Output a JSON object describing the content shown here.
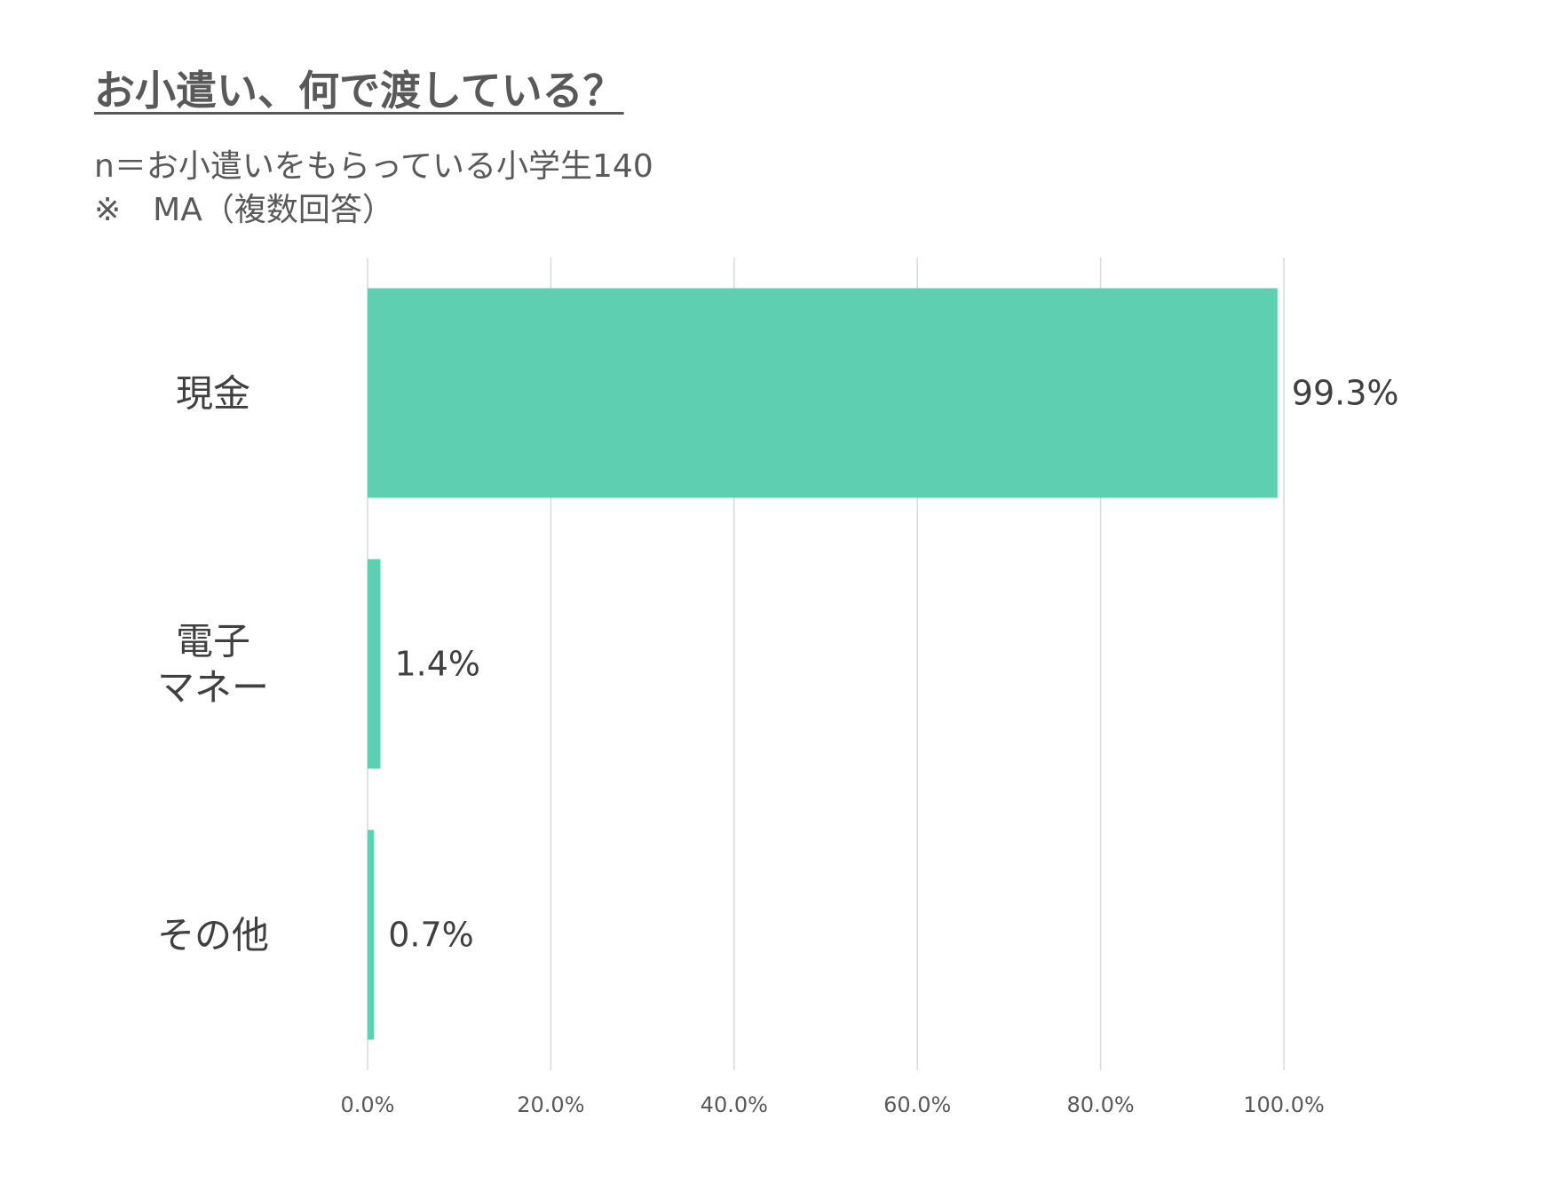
{
  "header": {
    "title": "お小遣い、何で渡している？",
    "subtitle_line1": "n＝お小遣いをもらっている小学生140",
    "subtitle_line2": "※　MA（複数回答）"
  },
  "colors": {
    "bar": "#5ecfb1",
    "grid": "#d9d9d9",
    "text": "#404040"
  },
  "chart_data": {
    "type": "bar",
    "orientation": "horizontal",
    "categories": [
      [
        "現金"
      ],
      [
        "電子",
        "マネー"
      ],
      [
        "その他"
      ]
    ],
    "values": [
      99.3,
      1.4,
      0.7
    ],
    "data_labels": [
      "99.3%",
      "1.4%",
      "0.7%"
    ],
    "xlim": [
      0,
      100
    ],
    "x_ticks": [
      0,
      20,
      40,
      60,
      80,
      100
    ],
    "x_tick_labels": [
      "0.0%",
      "20.0%",
      "40.0%",
      "60.0%",
      "80.0%",
      "100.0%"
    ],
    "grid": true
  }
}
